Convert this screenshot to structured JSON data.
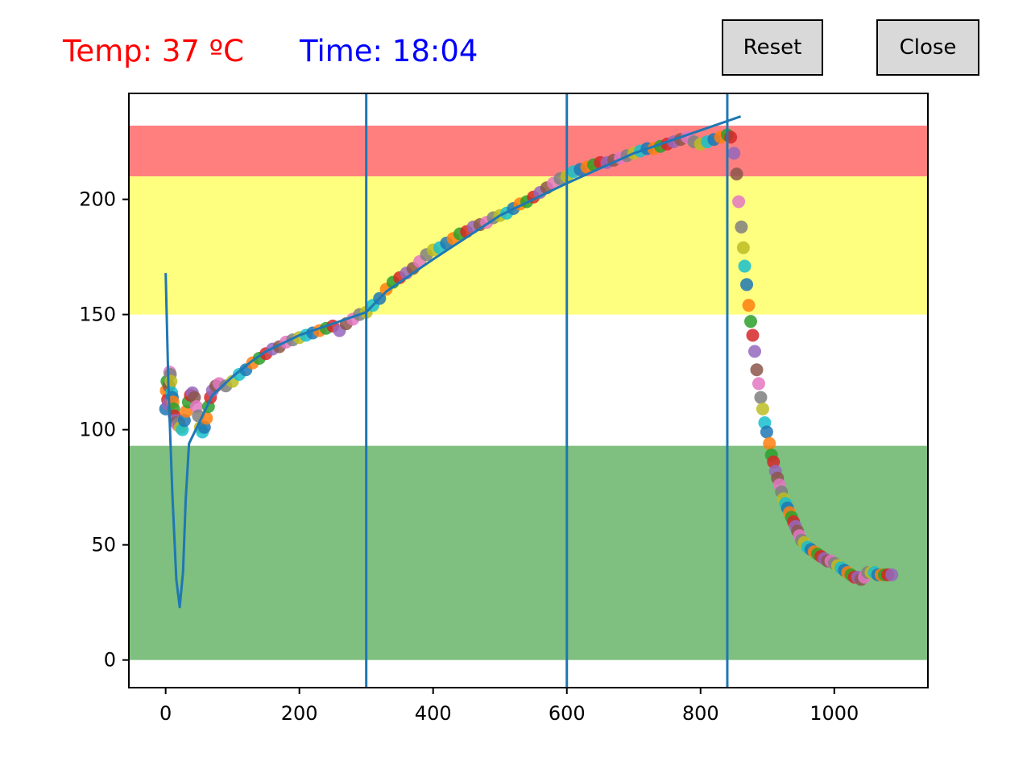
{
  "readouts": {
    "temp": "Temp: 37 ºC",
    "time": "Time: 18:04",
    "temp_color": "#ff0000",
    "time_color": "#0000ff"
  },
  "buttons": {
    "reset_label": "Reset",
    "close_label": "Close"
  },
  "chart_data": {
    "type": "scatter",
    "title": "",
    "xlabel": "",
    "ylabel": "",
    "xlim": [
      -55,
      1140
    ],
    "ylim": [
      -12,
      246
    ],
    "xticks": [
      0,
      200,
      400,
      600,
      800,
      1000
    ],
    "yticks": [
      0,
      50,
      100,
      150,
      200
    ],
    "grid": false,
    "bands": [
      {
        "ymin": 0,
        "ymax": 93,
        "color": "#008000",
        "opacity": 0.5
      },
      {
        "ymin": 150,
        "ymax": 210,
        "color": "#ffff00",
        "opacity": 0.5
      },
      {
        "ymin": 210,
        "ymax": 232,
        "color": "#ff0000",
        "opacity": 0.5
      }
    ],
    "vlines": [
      {
        "x": 300,
        "color": "#1f77b4"
      },
      {
        "x": 600,
        "color": "#1f77b4"
      },
      {
        "x": 840,
        "color": "#1f77b4"
      }
    ],
    "profile_line": {
      "color": "#1f77b4",
      "points": [
        [
          0,
          168
        ],
        [
          4,
          120
        ],
        [
          10,
          72
        ],
        [
          16,
          35
        ],
        [
          21,
          23
        ],
        [
          26,
          38
        ],
        [
          30,
          70
        ],
        [
          35,
          94
        ],
        [
          50,
          103
        ],
        [
          70,
          115
        ],
        [
          100,
          123
        ],
        [
          130,
          130
        ],
        [
          150,
          134
        ],
        [
          200,
          141
        ],
        [
          250,
          146
        ],
        [
          300,
          151
        ],
        [
          330,
          160
        ],
        [
          400,
          174
        ],
        [
          500,
          193
        ],
        [
          600,
          207
        ],
        [
          700,
          220
        ],
        [
          800,
          230
        ],
        [
          860,
          236
        ]
      ]
    },
    "points": [
      [
        0,
        109
      ],
      [
        1,
        117
      ],
      [
        2,
        121
      ],
      [
        3,
        113
      ],
      [
        4,
        111
      ],
      [
        5,
        119
      ],
      [
        6,
        125
      ],
      [
        7,
        124
      ],
      [
        8,
        121
      ],
      [
        9,
        116
      ],
      [
        10,
        114
      ],
      [
        11,
        112
      ],
      [
        12,
        109
      ],
      [
        13,
        106
      ],
      [
        14,
        104
      ],
      [
        16,
        103
      ],
      [
        18,
        102
      ],
      [
        20,
        103
      ],
      [
        22,
        101
      ],
      [
        25,
        100
      ],
      [
        28,
        104
      ],
      [
        31,
        108
      ],
      [
        34,
        112
      ],
      [
        37,
        115
      ],
      [
        40,
        116
      ],
      [
        43,
        114
      ],
      [
        46,
        110
      ],
      [
        49,
        106
      ],
      [
        52,
        101
      ],
      [
        55,
        99
      ],
      [
        58,
        101
      ],
      [
        61,
        105
      ],
      [
        64,
        110
      ],
      [
        67,
        114
      ],
      [
        70,
        117
      ],
      [
        75,
        119
      ],
      [
        80,
        120
      ],
      [
        90,
        119
      ],
      [
        100,
        121
      ],
      [
        110,
        124
      ],
      [
        120,
        126
      ],
      [
        130,
        129
      ],
      [
        140,
        131
      ],
      [
        150,
        133
      ],
      [
        160,
        135
      ],
      [
        170,
        136
      ],
      [
        180,
        138
      ],
      [
        190,
        139
      ],
      [
        200,
        140
      ],
      [
        210,
        141
      ],
      [
        220,
        142
      ],
      [
        230,
        143
      ],
      [
        240,
        144
      ],
      [
        250,
        145
      ],
      [
        260,
        143
      ],
      [
        270,
        146
      ],
      [
        280,
        148
      ],
      [
        290,
        150
      ],
      [
        300,
        151
      ],
      [
        310,
        154
      ],
      [
        320,
        157
      ],
      [
        330,
        161
      ],
      [
        340,
        164
      ],
      [
        350,
        166
      ],
      [
        360,
        168
      ],
      [
        370,
        170
      ],
      [
        380,
        173
      ],
      [
        390,
        176
      ],
      [
        400,
        178
      ],
      [
        410,
        179
      ],
      [
        420,
        181
      ],
      [
        430,
        183
      ],
      [
        440,
        185
      ],
      [
        450,
        186
      ],
      [
        460,
        188
      ],
      [
        470,
        189
      ],
      [
        480,
        190
      ],
      [
        490,
        192
      ],
      [
        500,
        193
      ],
      [
        510,
        194
      ],
      [
        520,
        196
      ],
      [
        530,
        198
      ],
      [
        540,
        199
      ],
      [
        550,
        201
      ],
      [
        560,
        203
      ],
      [
        570,
        205
      ],
      [
        580,
        207
      ],
      [
        590,
        209
      ],
      [
        600,
        210
      ],
      [
        610,
        212
      ],
      [
        620,
        213
      ],
      [
        630,
        214
      ],
      [
        640,
        215
      ],
      [
        650,
        216
      ],
      [
        660,
        216
      ],
      [
        670,
        217
      ],
      [
        680,
        218
      ],
      [
        690,
        219
      ],
      [
        700,
        220
      ],
      [
        710,
        221
      ],
      [
        720,
        222
      ],
      [
        730,
        222
      ],
      [
        740,
        223
      ],
      [
        750,
        224
      ],
      [
        760,
        225
      ],
      [
        770,
        226
      ],
      [
        780,
        227
      ],
      [
        790,
        225
      ],
      [
        800,
        224
      ],
      [
        810,
        225
      ],
      [
        820,
        226
      ],
      [
        830,
        227
      ],
      [
        840,
        228
      ],
      [
        845,
        227
      ],
      [
        850,
        220
      ],
      [
        854,
        211
      ],
      [
        857,
        199
      ],
      [
        861,
        188
      ],
      [
        864,
        179
      ],
      [
        866,
        171
      ],
      [
        869,
        163
      ],
      [
        872,
        154
      ],
      [
        875,
        147
      ],
      [
        878,
        141
      ],
      [
        881,
        134
      ],
      [
        884,
        126
      ],
      [
        887,
        120
      ],
      [
        890,
        114
      ],
      [
        893,
        109
      ],
      [
        896,
        103
      ],
      [
        899,
        99
      ],
      [
        903,
        94
      ],
      [
        906,
        89
      ],
      [
        909,
        86
      ],
      [
        912,
        82
      ],
      [
        915,
        79
      ],
      [
        918,
        76
      ],
      [
        921,
        73
      ],
      [
        924,
        70
      ],
      [
        927,
        68
      ],
      [
        930,
        66
      ],
      [
        933,
        64
      ],
      [
        936,
        62
      ],
      [
        939,
        60
      ],
      [
        942,
        58
      ],
      [
        945,
        56
      ],
      [
        948,
        54
      ],
      [
        951,
        52
      ],
      [
        955,
        51
      ],
      [
        960,
        49
      ],
      [
        965,
        48
      ],
      [
        970,
        47
      ],
      [
        975,
        46
      ],
      [
        980,
        45
      ],
      [
        985,
        44
      ],
      [
        990,
        43
      ],
      [
        995,
        43
      ],
      [
        1000,
        42
      ],
      [
        1005,
        41
      ],
      [
        1010,
        40
      ],
      [
        1015,
        39
      ],
      [
        1020,
        38
      ],
      [
        1025,
        37
      ],
      [
        1030,
        36
      ],
      [
        1035,
        36
      ],
      [
        1040,
        35
      ],
      [
        1045,
        36
      ],
      [
        1050,
        38
      ],
      [
        1055,
        38
      ],
      [
        1060,
        38
      ],
      [
        1065,
        37
      ],
      [
        1070,
        37
      ],
      [
        1075,
        37
      ],
      [
        1080,
        37
      ],
      [
        1086,
        37
      ]
    ],
    "point_colors": [
      "#1f77b4",
      "#ff7f0e",
      "#2ca02c",
      "#d62728",
      "#9467bd",
      "#8c564b",
      "#e377c2",
      "#7f7f7f",
      "#bcbd22",
      "#17becf"
    ]
  }
}
